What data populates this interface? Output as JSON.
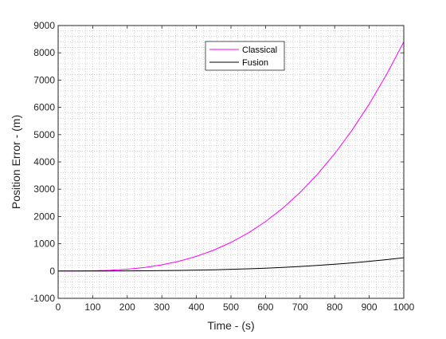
{
  "chart_data": {
    "type": "line",
    "xlabel": "Time - (s)",
    "ylabel": "Position Error - (m)",
    "xlim": [
      0,
      1000
    ],
    "ylim": [
      -1000,
      9000
    ],
    "xticks": [
      0,
      100,
      200,
      300,
      400,
      500,
      600,
      700,
      800,
      900,
      1000
    ],
    "yticks": [
      -1000,
      0,
      1000,
      2000,
      3000,
      4000,
      5000,
      6000,
      7000,
      8000,
      9000
    ],
    "grid": "dotted minor grid",
    "legend_position": "top-center",
    "x": [
      0,
      50,
      100,
      150,
      200,
      250,
      300,
      350,
      400,
      450,
      500,
      550,
      600,
      650,
      700,
      750,
      800,
      850,
      900,
      950,
      1000
    ],
    "series": [
      {
        "name": "Classical",
        "color": "#ff00ff",
        "values": [
          0,
          1,
          8,
          28,
          67,
          131,
          227,
          360,
          538,
          765,
          1050,
          1397,
          1814,
          2306,
          2881,
          3543,
          4300,
          5157,
          6122,
          7201,
          8400
        ]
      },
      {
        "name": "Fusion",
        "color": "#000000",
        "values": [
          0,
          0,
          1,
          3,
          5,
          9,
          15,
          22,
          33,
          46,
          62,
          82,
          105,
          133,
          166,
          205,
          249,
          299,
          355,
          418,
          487
        ]
      }
    ]
  }
}
